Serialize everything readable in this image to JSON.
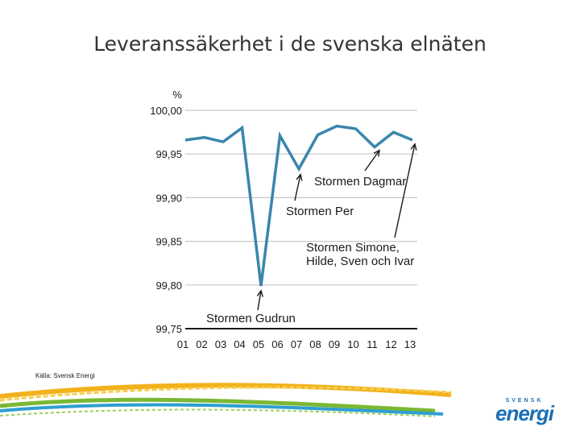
{
  "title": "Leveranssäkerhet i de svenska elnäten",
  "source": "Källa: Svensk Energi",
  "logo": {
    "top": "SVENSK",
    "main": "energi"
  },
  "colors": {
    "line": "#3a86ad",
    "grid": "#c8c8c8",
    "axis": "#1a1a1a",
    "text": "#1a1a1a"
  },
  "chart_data": {
    "type": "line",
    "ylabel": "%",
    "ylim": [
      99.75,
      100.0
    ],
    "yticks": [
      100.0,
      99.95,
      99.9,
      99.85,
      99.8,
      99.75
    ],
    "ytick_labels": [
      "100,00",
      "99,95",
      "99,90",
      "99,85",
      "99,80",
      "99,75"
    ],
    "categories": [
      "01",
      "02",
      "03",
      "04",
      "05",
      "06",
      "07",
      "08",
      "09",
      "10",
      "11",
      "12",
      "13"
    ],
    "series": [
      {
        "name": "Leveranssäkerhet",
        "values": [
          99.966,
          99.969,
          99.964,
          99.98,
          99.799,
          99.971,
          99.933,
          99.972,
          99.982,
          99.979,
          99.958,
          99.975,
          99.966
        ]
      }
    ],
    "annotations": [
      {
        "lines": [
          "Stormen Gudrun"
        ],
        "target": "05"
      },
      {
        "lines": [
          "Stormen Per"
        ],
        "target": "07"
      },
      {
        "lines": [
          "Stormen Dagmar"
        ],
        "target": "11"
      },
      {
        "lines": [
          "Stormen Simone,",
          "Hilde, Sven och Ivar"
        ],
        "target": "13"
      }
    ]
  }
}
